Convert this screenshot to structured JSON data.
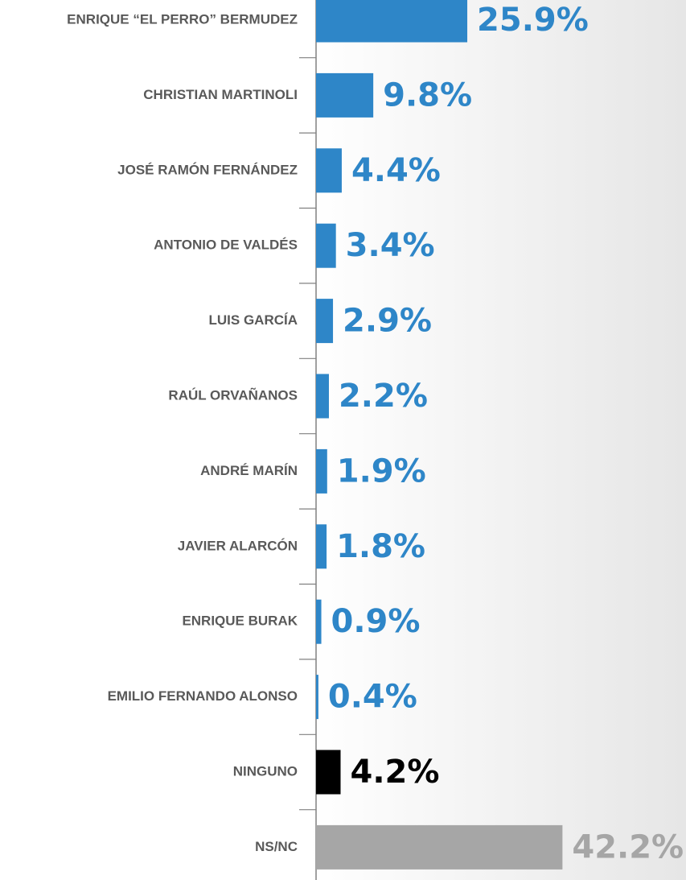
{
  "chart_data": {
    "type": "bar",
    "orientation": "horizontal",
    "categories": [
      "ENRIQUE “EL PERRO” BERMUDEZ",
      "CHRISTIAN MARTINOLI",
      "JOSÉ RAMÓN FERNÁNDEZ",
      "ANTONIO DE VALDÉS",
      "LUIS GARCÍA",
      "RAÚL ORVAÑANOS",
      "ANDRÉ MARÍN",
      "JAVIER ALARCÓN",
      "ENRIQUE BURAK",
      "EMILIO FERNANDO ALONSO",
      "NINGUNO",
      "NS/NC"
    ],
    "values": [
      25.9,
      9.8,
      4.4,
      3.4,
      2.9,
      2.2,
      1.9,
      1.8,
      0.9,
      0.4,
      4.2,
      42.2
    ],
    "value_labels": [
      "25.9%",
      "9.8%",
      "4.4%",
      "3.4%",
      "2.9%",
      "2.2%",
      "1.9%",
      "1.8%",
      "0.9%",
      "0.4%",
      "4.2%",
      "42.2%"
    ],
    "colors": [
      "#2e86c8",
      "#2e86c8",
      "#2e86c8",
      "#2e86c8",
      "#2e86c8",
      "#2e86c8",
      "#2e86c8",
      "#2e86c8",
      "#2e86c8",
      "#2e86c8",
      "#000000",
      "#a6a6a6"
    ]
  }
}
